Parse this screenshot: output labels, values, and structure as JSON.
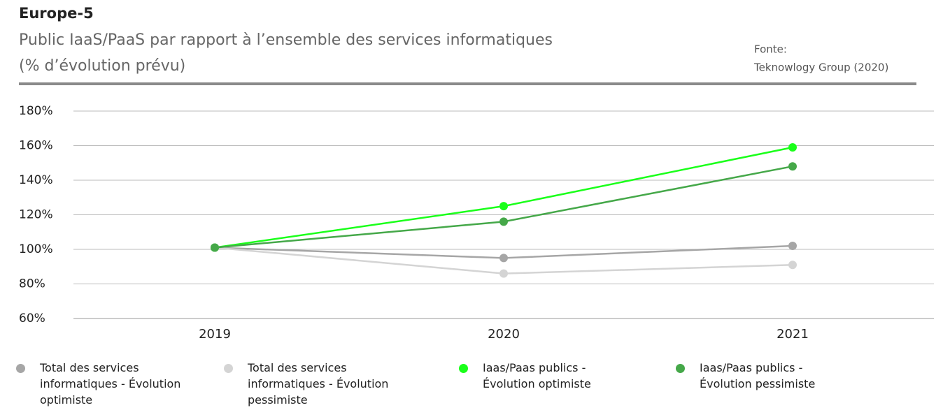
{
  "chart_data": {
    "type": "line",
    "title": "Europe-5",
    "subtitle": [
      "Public IaaS/PaaS par rapport à l’ensemble des services informatiques",
      "(% d’évolution prévu)"
    ],
    "source": [
      "Fonte:",
      "Teknowlogy Group (2020)"
    ],
    "categories": [
      "2019",
      "2020",
      "2021"
    ],
    "series": [
      {
        "name": "Total des services informatiques - Évolution optimiste",
        "color": "#a6a6a6",
        "values": [
          101,
          95,
          102
        ]
      },
      {
        "name": "Total des services informatiques - Évolution pessimiste",
        "color": "#d4d4d4",
        "values": [
          101,
          86,
          91
        ]
      },
      {
        "name": "Iaas/Paas publics - Évolution optimiste",
        "color": "#1aff1a",
        "values": [
          101,
          125,
          159
        ]
      },
      {
        "name": "Iaas/Paas publics - Évolution pessimiste",
        "color": "#45a849",
        "values": [
          101,
          116,
          148
        ]
      }
    ],
    "ylim": [
      60,
      180
    ],
    "yticks": [
      {
        "value": 60,
        "label": "60%"
      },
      {
        "value": 80,
        "label": "80%"
      },
      {
        "value": 100,
        "label": "100%"
      },
      {
        "value": 120,
        "label": "120%"
      },
      {
        "value": 140,
        "label": "140%"
      },
      {
        "value": 160,
        "label": "160%"
      },
      {
        "value": 180,
        "label": "180%"
      }
    ],
    "grid": true
  }
}
